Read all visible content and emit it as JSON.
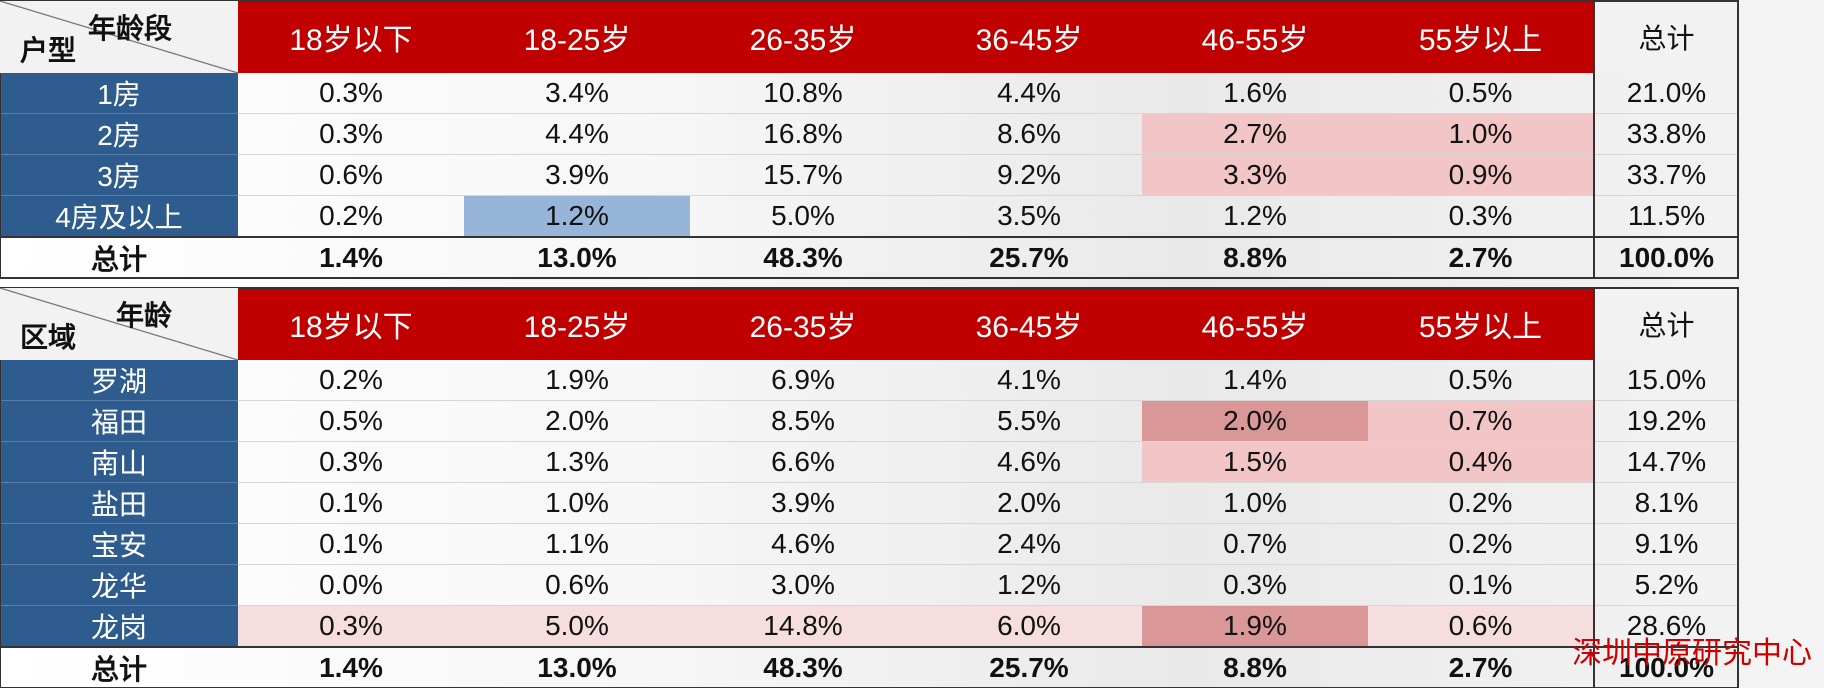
{
  "chart_data": [
    {
      "type": "table",
      "corner_top": "年龄段",
      "corner_bottom": "户型",
      "columns": [
        "18岁以下",
        "18-25岁",
        "26-35岁",
        "36-45岁",
        "46-55岁",
        "55岁以上"
      ],
      "total_label": "总计",
      "rows": [
        {
          "label": "1房",
          "values": [
            "0.3%",
            "3.4%",
            "10.8%",
            "4.4%",
            "1.6%",
            "0.5%"
          ],
          "total": "21.0%",
          "hl": [
            "",
            "",
            "",
            "",
            "",
            ""
          ]
        },
        {
          "label": "2房",
          "values": [
            "0.3%",
            "4.4%",
            "16.8%",
            "8.6%",
            "2.7%",
            "1.0%"
          ],
          "total": "33.8%",
          "hl": [
            "",
            "",
            "",
            "",
            "pink",
            "pink"
          ]
        },
        {
          "label": "3房",
          "values": [
            "0.6%",
            "3.9%",
            "15.7%",
            "9.2%",
            "3.3%",
            "0.9%"
          ],
          "total": "33.7%",
          "hl": [
            "",
            "",
            "",
            "",
            "pink",
            "pink"
          ]
        },
        {
          "label": "4房及以上",
          "values": [
            "0.2%",
            "1.2%",
            "5.0%",
            "3.5%",
            "1.2%",
            "0.3%"
          ],
          "total": "11.5%",
          "hl": [
            "",
            "blue",
            "",
            "",
            "",
            ""
          ]
        }
      ],
      "totals_row": {
        "label": "总计",
        "values": [
          "1.4%",
          "13.0%",
          "48.3%",
          "25.7%",
          "8.8%",
          "2.7%"
        ],
        "total": "100.0%"
      }
    },
    {
      "type": "table",
      "corner_top": "年龄",
      "corner_bottom": "区域",
      "columns": [
        "18岁以下",
        "18-25岁",
        "26-35岁",
        "36-45岁",
        "46-55岁",
        "55岁以上"
      ],
      "total_label": "总计",
      "rows": [
        {
          "label": "罗湖",
          "values": [
            "0.2%",
            "1.9%",
            "6.9%",
            "4.1%",
            "1.4%",
            "0.5%"
          ],
          "total": "15.0%",
          "hl": [
            "",
            "",
            "",
            "",
            "",
            ""
          ]
        },
        {
          "label": "福田",
          "values": [
            "0.5%",
            "2.0%",
            "8.5%",
            "5.5%",
            "2.0%",
            "0.7%"
          ],
          "total": "19.2%",
          "hl": [
            "",
            "",
            "",
            "",
            "pink-dk",
            "pink"
          ]
        },
        {
          "label": "南山",
          "values": [
            "0.3%",
            "1.3%",
            "6.6%",
            "4.6%",
            "1.5%",
            "0.4%"
          ],
          "total": "14.7%",
          "hl": [
            "",
            "",
            "",
            "",
            "pink",
            "pink"
          ]
        },
        {
          "label": "盐田",
          "values": [
            "0.1%",
            "1.0%",
            "3.9%",
            "2.0%",
            "1.0%",
            "0.2%"
          ],
          "total": "8.1%",
          "hl": [
            "",
            "",
            "",
            "",
            "",
            ""
          ]
        },
        {
          "label": "宝安",
          "values": [
            "0.1%",
            "1.1%",
            "4.6%",
            "2.4%",
            "0.7%",
            "0.2%"
          ],
          "total": "9.1%",
          "hl": [
            "",
            "",
            "",
            "",
            "",
            ""
          ]
        },
        {
          "label": "龙华",
          "values": [
            "0.0%",
            "0.6%",
            "3.0%",
            "1.2%",
            "0.3%",
            "0.1%"
          ],
          "total": "5.2%",
          "hl": [
            "",
            "",
            "",
            "",
            "",
            ""
          ]
        },
        {
          "label": "龙岗",
          "values": [
            "0.3%",
            "5.0%",
            "14.8%",
            "6.0%",
            "1.9%",
            "0.6%"
          ],
          "total": "28.6%",
          "hl": [
            "pink-lt",
            "pink-lt",
            "pink-lt",
            "pink-lt",
            "pink-dk",
            "pink-lt"
          ]
        }
      ],
      "totals_row": {
        "label": "总计",
        "values": [
          "1.4%",
          "13.0%",
          "48.3%",
          "25.7%",
          "8.8%",
          "2.7%"
        ],
        "total": "100.0%"
      }
    }
  ],
  "watermark": "深圳中原研究中心",
  "colors": {
    "header_red": "#c00000",
    "row_label_blue": "#2f5c8f",
    "highlight_pink": "#f2c6c6",
    "highlight_pink_dark": "#d99797",
    "highlight_blue": "#97b5d9",
    "watermark_red": "#cc0000"
  }
}
